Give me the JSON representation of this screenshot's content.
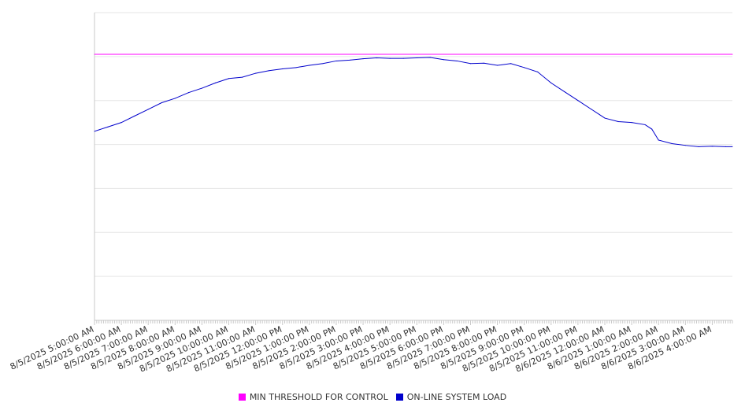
{
  "chart_data": {
    "type": "line",
    "title": "",
    "xlabel": "",
    "ylabel": "",
    "x_tick_labels": [
      "8/5/2025 5:00:00 AM",
      "8/5/2025 6:00:00 AM",
      "8/5/2025 7:00:00 AM",
      "8/5/2025 8:00:00 AM",
      "8/5/2025 9:00:00 AM",
      "8/5/2025 10:00:00 AM",
      "8/5/2025 11:00:00 AM",
      "8/5/2025 12:00:00 PM",
      "8/5/2025 1:00:00 PM",
      "8/5/2025 2:00:00 PM",
      "8/5/2025 3:00:00 PM",
      "8/5/2025 4:00:00 PM",
      "8/5/2025 5:00:00 PM",
      "8/5/2025 6:00:00 PM",
      "8/5/2025 7:00:00 PM",
      "8/5/2025 8:00:00 PM",
      "8/5/2025 9:00:00 PM",
      "8/5/2025 10:00:00 PM",
      "8/5/2025 11:00:00 PM",
      "8/6/2025 12:00:00 AM",
      "8/6/2025 1:00:00 AM",
      "8/6/2025 2:00:00 AM",
      "8/6/2025 3:00:00 AM",
      "8/6/2025 4:00:00 AM"
    ],
    "x_range": [
      "8/5/2025 5:00:00 AM",
      "8/6/2025 4:45:00 AM"
    ],
    "y_range": [
      0,
      7
    ],
    "y_gridlines": [
      1,
      2,
      3,
      4,
      5,
      6,
      7
    ],
    "y_tick_labels_visible": false,
    "grid": true,
    "legend_position": "bottom",
    "series": [
      {
        "name": "MIN THRESHOLD FOR CONTROL",
        "color": "#ff00ff",
        "points": [
          [
            "8/5/2025 5:00:00 AM",
            6.05
          ],
          [
            "8/6/2025 4:45:00 AM",
            6.05
          ]
        ]
      },
      {
        "name": "ON-LINE SYSTEM LOAD",
        "color": "#0000cc",
        "points": [
          [
            "8/5/2025 5:00:00 AM",
            4.3
          ],
          [
            "8/5/2025 5:30:00 AM",
            4.4
          ],
          [
            "8/5/2025 6:00:00 AM",
            4.5
          ],
          [
            "8/5/2025 6:30:00 AM",
            4.65
          ],
          [
            "8/5/2025 7:00:00 AM",
            4.8
          ],
          [
            "8/5/2025 7:30:00 AM",
            4.95
          ],
          [
            "8/5/2025 8:00:00 AM",
            5.05
          ],
          [
            "8/5/2025 8:30:00 AM",
            5.18
          ],
          [
            "8/5/2025 9:00:00 AM",
            5.28
          ],
          [
            "8/5/2025 9:30:00 AM",
            5.4
          ],
          [
            "8/5/2025 10:00:00 AM",
            5.5
          ],
          [
            "8/5/2025 10:30:00 AM",
            5.53
          ],
          [
            "8/5/2025 11:00:00 AM",
            5.62
          ],
          [
            "8/5/2025 11:30:00 AM",
            5.68
          ],
          [
            "8/5/2025 12:00:00 PM",
            5.72
          ],
          [
            "8/5/2025 12:30:00 PM",
            5.75
          ],
          [
            "8/5/2025 1:00:00 PM",
            5.8
          ],
          [
            "8/5/2025 1:30:00 PM",
            5.84
          ],
          [
            "8/5/2025 2:00:00 PM",
            5.9
          ],
          [
            "8/5/2025 2:30:00 PM",
            5.92
          ],
          [
            "8/5/2025 3:00:00 PM",
            5.95
          ],
          [
            "8/5/2025 3:30:00 PM",
            5.97
          ],
          [
            "8/5/2025 4:00:00 PM",
            5.96
          ],
          [
            "8/5/2025 4:30:00 PM",
            5.96
          ],
          [
            "8/5/2025 5:00:00 PM",
            5.97
          ],
          [
            "8/5/2025 5:30:00 PM",
            5.98
          ],
          [
            "8/5/2025 6:00:00 PM",
            5.93
          ],
          [
            "8/5/2025 6:30:00 PM",
            5.9
          ],
          [
            "8/5/2025 7:00:00 PM",
            5.84
          ],
          [
            "8/5/2025 7:30:00 PM",
            5.85
          ],
          [
            "8/5/2025 8:00:00 PM",
            5.8
          ],
          [
            "8/5/2025 8:30:00 PM",
            5.84
          ],
          [
            "8/5/2025 9:00:00 PM",
            5.75
          ],
          [
            "8/5/2025 9:30:00 PM",
            5.65
          ],
          [
            "8/5/2025 10:00:00 PM",
            5.4
          ],
          [
            "8/5/2025 10:30:00 PM",
            5.2
          ],
          [
            "8/5/2025 11:00:00 PM",
            5.0
          ],
          [
            "8/5/2025 11:30:00 PM",
            4.8
          ],
          [
            "8/6/2025 12:00:00 AM",
            4.6
          ],
          [
            "8/6/2025 12:30:00 AM",
            4.52
          ],
          [
            "8/6/2025 1:00:00 AM",
            4.5
          ],
          [
            "8/6/2025 1:30:00 AM",
            4.45
          ],
          [
            "8/6/2025 1:45:00 AM",
            4.35
          ],
          [
            "8/6/2025 2:00:00 AM",
            4.1
          ],
          [
            "8/6/2025 2:30:00 AM",
            4.02
          ],
          [
            "8/6/2025 3:00:00 AM",
            3.98
          ],
          [
            "8/6/2025 3:30:00 AM",
            3.95
          ],
          [
            "8/6/2025 4:00:00 AM",
            3.96
          ],
          [
            "8/6/2025 4:30:00 AM",
            3.95
          ],
          [
            "8/6/2025 4:45:00 AM",
            3.95
          ]
        ]
      }
    ]
  }
}
